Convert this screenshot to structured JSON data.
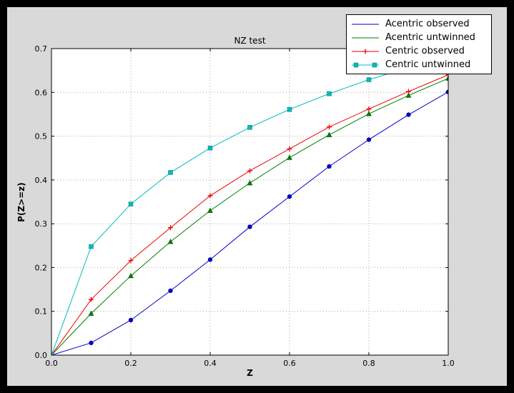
{
  "window": {
    "background": "#000000"
  },
  "figure": {
    "background": "#d9d9d9",
    "plot_background": "#ffffff"
  },
  "chart_data": {
    "type": "line",
    "title": "NZ test",
    "xlabel": "Z",
    "ylabel": "P(Z>=z)",
    "xlim": [
      0.0,
      1.0
    ],
    "ylim": [
      0.0,
      0.7
    ],
    "xticks": [
      0.0,
      0.2,
      0.4,
      0.6,
      0.8,
      1.0
    ],
    "yticks": [
      0.0,
      0.1,
      0.2,
      0.3,
      0.4,
      0.5,
      0.6,
      0.7
    ],
    "grid": true,
    "legend_position": "upper right",
    "x": [
      0.0,
      0.1,
      0.2,
      0.3,
      0.4,
      0.5,
      0.6,
      0.7,
      0.8,
      0.9,
      1.0
    ],
    "series": [
      {
        "name": "Acentric observed",
        "color": "#0000cc",
        "marker": "circle",
        "legend_marker": "none",
        "values": [
          0.0,
          0.028,
          0.08,
          0.147,
          0.218,
          0.293,
          0.362,
          0.431,
          0.492,
          0.549,
          0.601
        ]
      },
      {
        "name": "Acentric untwinned",
        "color": "#007d00",
        "marker": "triangle",
        "legend_marker": "none",
        "values": [
          0.0,
          0.095,
          0.181,
          0.259,
          0.33,
          0.393,
          0.451,
          0.503,
          0.551,
          0.593,
          0.632
        ]
      },
      {
        "name": "Centric observed",
        "color": "#ee0000",
        "marker": "plus",
        "legend_marker": "plus",
        "values": [
          0.0,
          0.127,
          0.216,
          0.291,
          0.364,
          0.421,
          0.471,
          0.521,
          0.562,
          0.602,
          0.64
        ]
      },
      {
        "name": "Centric untwinned",
        "color": "#00bcbc",
        "marker": "square",
        "legend_marker": "square2",
        "values": [
          0.0,
          0.248,
          0.345,
          0.417,
          0.473,
          0.52,
          0.561,
          0.597,
          0.629,
          0.657,
          0.683
        ]
      }
    ]
  }
}
